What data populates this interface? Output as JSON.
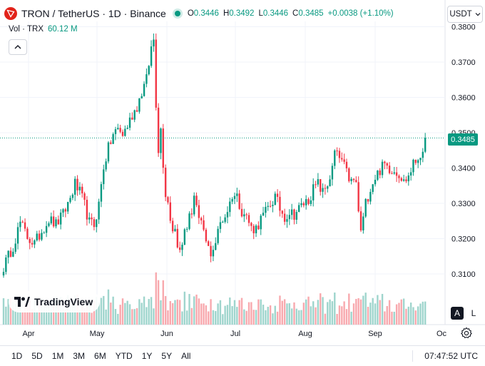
{
  "legend": {
    "symbol": "TRON / TetherUS · 1D · Binance",
    "open_label": "O",
    "open": "0.3446",
    "high_label": "H",
    "high": "0.3492",
    "low_label": "L",
    "low": "0.3446",
    "close_label": "C",
    "close": "0.3485",
    "change": "+0.0038 (+1.10%)",
    "volume_label": "Vol · TRX",
    "volume": "60.12 M"
  },
  "currency_selector": "USDT",
  "price_badge": "0.3485",
  "logo_text": "TradingView",
  "scale_buttons": {
    "auto": "A",
    "log": "L"
  },
  "time_ranges": [
    "1D",
    "5D",
    "1M",
    "3M",
    "6M",
    "YTD",
    "1Y",
    "5Y",
    "All"
  ],
  "clock": "07:47:52 UTC",
  "colors": {
    "up": "#089981",
    "down": "#f23645",
    "up_volume": "#9fd5cd",
    "down_volume": "#f8a9ae",
    "text": "#131722",
    "grid": "#f0f3fa"
  },
  "chart_data": {
    "type": "candlestick",
    "y_ticks": [
      "0.3800",
      "0.3700",
      "0.3600",
      "0.3500",
      "0.3400",
      "0.3300",
      "0.3200",
      "0.3100"
    ],
    "ylim": [
      0.305,
      0.38
    ],
    "x_ticks": [
      "Apr",
      "May",
      "Jun",
      "Jul",
      "Aug",
      "Sep",
      "Oc"
    ],
    "last_price": 0.3485,
    "series": [
      {
        "name": "price",
        "points": [
          {
            "p": 0,
            "c": 0.312
          },
          {
            "p": 4,
            "c": 0.318
          },
          {
            "p": 7,
            "c": 0.3245
          },
          {
            "p": 10,
            "c": 0.3205
          },
          {
            "p": 13,
            "c": 0.3185
          },
          {
            "p": 16,
            "c": 0.3222
          },
          {
            "p": 19,
            "c": 0.3255
          },
          {
            "p": 22,
            "c": 0.324
          },
          {
            "p": 25,
            "c": 0.3268
          },
          {
            "p": 28,
            "c": 0.3315
          },
          {
            "p": 30,
            "c": 0.3355
          },
          {
            "p": 32,
            "c": 0.333
          },
          {
            "p": 34,
            "c": 0.3295
          },
          {
            "p": 36,
            "c": 0.3245
          },
          {
            "p": 38,
            "c": 0.3238
          },
          {
            "p": 40,
            "c": 0.3298
          },
          {
            "p": 42,
            "c": 0.3405
          },
          {
            "p": 44,
            "c": 0.3455
          },
          {
            "p": 46,
            "c": 0.3495
          },
          {
            "p": 48,
            "c": 0.351
          },
          {
            "p": 50,
            "c": 0.3495
          },
          {
            "p": 52,
            "c": 0.352
          },
          {
            "p": 54,
            "c": 0.355
          },
          {
            "p": 56,
            "c": 0.3575
          },
          {
            "p": 58,
            "c": 0.3615
          },
          {
            "p": 60,
            "c": 0.365
          },
          {
            "p": 61,
            "c": 0.3695
          },
          {
            "p": 62,
            "c": 0.374
          },
          {
            "p": 63,
            "c": 0.3765
          },
          {
            "p": 64,
            "c": 0.3585
          },
          {
            "p": 65,
            "c": 0.3455
          },
          {
            "p": 66,
            "c": 0.351
          },
          {
            "p": 67,
            "c": 0.3415
          },
          {
            "p": 68,
            "c": 0.333
          },
          {
            "p": 69,
            "c": 0.3305
          },
          {
            "p": 70,
            "c": 0.326
          },
          {
            "p": 71,
            "c": 0.323
          },
          {
            "p": 72,
            "c": 0.3225
          },
          {
            "p": 73,
            "c": 0.319
          },
          {
            "p": 74,
            "c": 0.316
          },
          {
            "p": 75,
            "c": 0.318
          },
          {
            "p": 76,
            "c": 0.323
          },
          {
            "p": 77,
            "c": 0.3235
          },
          {
            "p": 79,
            "c": 0.328
          },
          {
            "p": 80,
            "c": 0.3325
          },
          {
            "p": 81,
            "c": 0.329
          },
          {
            "p": 82,
            "c": 0.3245
          },
          {
            "p": 84,
            "c": 0.3225
          },
          {
            "p": 85,
            "c": 0.3185
          },
          {
            "p": 87,
            "c": 0.316
          },
          {
            "p": 89,
            "c": 0.319
          },
          {
            "p": 91,
            "c": 0.3245
          },
          {
            "p": 93,
            "c": 0.3265
          },
          {
            "p": 95,
            "c": 0.33
          },
          {
            "p": 96,
            "c": 0.3325
          },
          {
            "p": 98,
            "c": 0.332
          },
          {
            "p": 100,
            "c": 0.328
          },
          {
            "p": 102,
            "c": 0.3262
          },
          {
            "p": 104,
            "c": 0.323
          },
          {
            "p": 106,
            "c": 0.323
          },
          {
            "p": 108,
            "c": 0.3255
          },
          {
            "p": 110,
            "c": 0.3275
          },
          {
            "p": 112,
            "c": 0.3298
          },
          {
            "p": 114,
            "c": 0.3318
          },
          {
            "p": 116,
            "c": 0.3285
          },
          {
            "p": 118,
            "c": 0.3262
          },
          {
            "p": 120,
            "c": 0.3275
          },
          {
            "p": 122,
            "c": 0.327
          },
          {
            "p": 124,
            "c": 0.3285
          },
          {
            "p": 126,
            "c": 0.33
          },
          {
            "p": 128,
            "c": 0.331
          },
          {
            "p": 130,
            "c": 0.334
          },
          {
            "p": 132,
            "c": 0.3355
          },
          {
            "p": 134,
            "c": 0.333
          },
          {
            "p": 136,
            "c": 0.3355
          },
          {
            "p": 138,
            "c": 0.3395
          },
          {
            "p": 139,
            "c": 0.3445
          },
          {
            "p": 140,
            "c": 0.3435
          },
          {
            "p": 142,
            "c": 0.342
          },
          {
            "p": 144,
            "c": 0.3385
          },
          {
            "p": 146,
            "c": 0.336
          },
          {
            "p": 148,
            "c": 0.336
          },
          {
            "p": 149,
            "c": 0.327
          },
          {
            "p": 150,
            "c": 0.3225
          },
          {
            "p": 151,
            "c": 0.3255
          },
          {
            "p": 152,
            "c": 0.33
          },
          {
            "p": 154,
            "c": 0.3345
          },
          {
            "p": 156,
            "c": 0.3375
          },
          {
            "p": 158,
            "c": 0.3395
          },
          {
            "p": 160,
            "c": 0.341
          },
          {
            "p": 162,
            "c": 0.34
          },
          {
            "p": 164,
            "c": 0.3395
          },
          {
            "p": 166,
            "c": 0.3385
          },
          {
            "p": 168,
            "c": 0.336
          },
          {
            "p": 170,
            "c": 0.3378
          },
          {
            "p": 172,
            "c": 0.341
          },
          {
            "p": 174,
            "c": 0.343
          },
          {
            "p": 176,
            "c": 0.3455
          },
          {
            "p": 177,
            "c": 0.3485
          }
        ]
      }
    ],
    "volume_series": "daily volume bars, colored by candle direction"
  }
}
